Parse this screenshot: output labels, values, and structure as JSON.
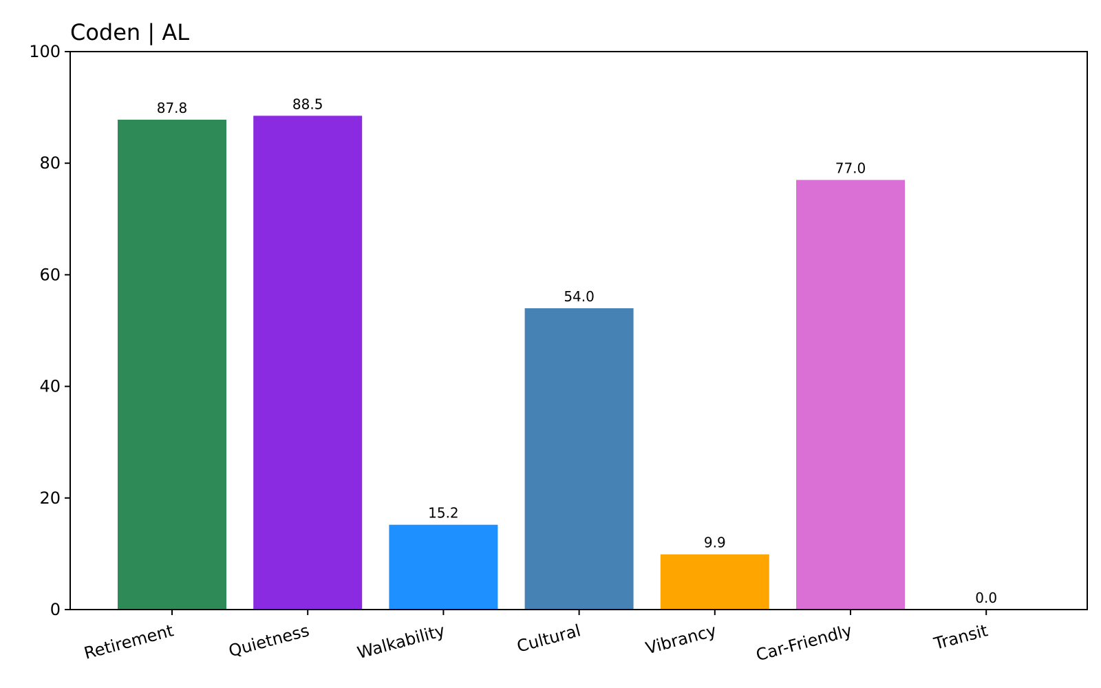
{
  "chart_data": {
    "type": "bar",
    "title": "Coden | AL",
    "xlabel": "",
    "ylabel": "",
    "categories": [
      "Retirement",
      "Quietness",
      "Walkability",
      "Cultural",
      "Vibrancy",
      "Car-Friendly",
      "Transit"
    ],
    "values": [
      87.8,
      88.5,
      15.2,
      54.0,
      9.9,
      77.0,
      0.0
    ],
    "value_labels": [
      "87.8",
      "88.5",
      "15.2",
      "54.0",
      "9.9",
      "77.0",
      "0.0"
    ],
    "colors": [
      "#2e8b57",
      "#8a2be2",
      "#1e90ff",
      "#4682b4",
      "#ffa500",
      "#da70d6",
      "#808080"
    ],
    "ylim": [
      0,
      100
    ],
    "yticks": [
      0,
      20,
      40,
      60,
      80,
      100
    ],
    "grid": false,
    "legend": "none",
    "xtick_rotation": 15
  }
}
